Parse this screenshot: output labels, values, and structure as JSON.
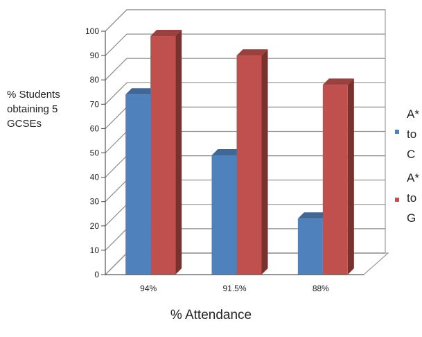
{
  "chart_data": {
    "type": "bar",
    "categories": [
      "94%",
      "91.5%",
      "88%"
    ],
    "series": [
      {
        "name": "A* to C",
        "color": "#4f81bd",
        "values": [
          74,
          49,
          23
        ]
      },
      {
        "name": "A* to G",
        "color": "#c0504d",
        "values": [
          98,
          90,
          78
        ]
      }
    ],
    "ylabel": "% Students obtaining 5 GCSEs",
    "xlabel": "% Attendance",
    "ylim": [
      0,
      100
    ],
    "yticks": [
      0,
      10,
      20,
      30,
      40,
      50,
      60,
      70,
      80,
      90,
      100
    ],
    "grid": true,
    "legend_position": "right",
    "style": "3d-clustered-column"
  }
}
